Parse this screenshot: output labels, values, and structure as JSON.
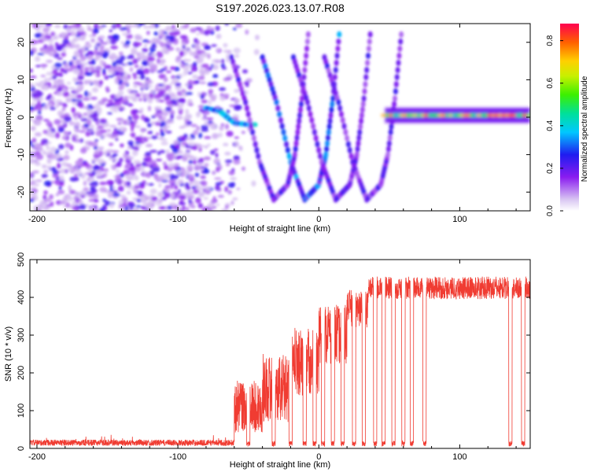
{
  "title": "S197.2026.023.13.07.R08",
  "chart_data": [
    {
      "type": "heatmap",
      "name": "spectrogram",
      "xlabel": "Height of straight line (km)",
      "ylabel": "Frequency (Hz)",
      "xlim": [
        -205,
        150
      ],
      "ylim": [
        -25,
        25
      ],
      "x_ticks": [
        -200,
        -100,
        0,
        100
      ],
      "y_ticks": [
        -20,
        -10,
        0,
        10,
        20
      ],
      "colorbar": {
        "label": "Normalized spectral amplitude",
        "range": [
          0.0,
          0.88
        ],
        "ticks": [
          0.0,
          0.2,
          0.4,
          0.6,
          0.8
        ]
      },
      "features": [
        {
          "kind": "noise",
          "x_range": [
            -205,
            -60
          ],
          "description": "scattered purple noise"
        },
        {
          "kind": "tone",
          "points": [
            [
              -80,
              2.5
            ],
            [
              -70,
              1.5
            ],
            [
              -60,
              -1.5
            ],
            [
              -50,
              -2
            ],
            [
              -45,
              -2
            ]
          ],
          "amplitude": 0.35
        },
        {
          "kind": "v-curve",
          "points": [
            [
              -40,
              16
            ],
            [
              -30,
              4
            ],
            [
              -20,
              -12
            ],
            [
              -10,
              -22
            ],
            [
              0,
              -18
            ],
            [
              5,
              -10
            ],
            [
              10,
              5
            ],
            [
              15,
              24
            ]
          ],
          "amplitude": 0.3
        },
        {
          "kind": "tone",
          "x_range": [
            47,
            150
          ],
          "frequency": 0.5,
          "amplitude": 0.75
        }
      ]
    },
    {
      "type": "line",
      "name": "snr",
      "xlabel": "Height of straight line (km)",
      "ylabel": "SNR (10 * v/v)",
      "xlim": [
        -205,
        150
      ],
      "ylim": [
        0,
        500
      ],
      "x_ticks": [
        -200,
        -100,
        0,
        100
      ],
      "y_ticks": [
        0,
        100,
        200,
        300,
        400,
        500
      ],
      "color": "#f03c32",
      "segments": [
        {
          "x": [
            -205,
            -60
          ],
          "level": 15,
          "noise": 8
        },
        {
          "x": [
            -60,
            -40
          ],
          "level": 110,
          "noise": 70
        },
        {
          "x": [
            -40,
            -20
          ],
          "level": 160,
          "noise": 90
        },
        {
          "x": [
            -20,
            0
          ],
          "level": 230,
          "noise": 90
        },
        {
          "x": [
            0,
            20
          ],
          "level": 300,
          "noise": 80
        },
        {
          "x": [
            20,
            35
          ],
          "level": 370,
          "noise": 50
        },
        {
          "x": [
            35,
            150
          ],
          "level": 425,
          "noise": 30
        }
      ],
      "dropouts": [
        -50,
        -32,
        -20,
        -10,
        -3,
        3,
        10,
        17,
        25,
        32,
        40,
        46,
        53,
        60,
        66,
        75,
        136,
        145
      ]
    }
  ]
}
